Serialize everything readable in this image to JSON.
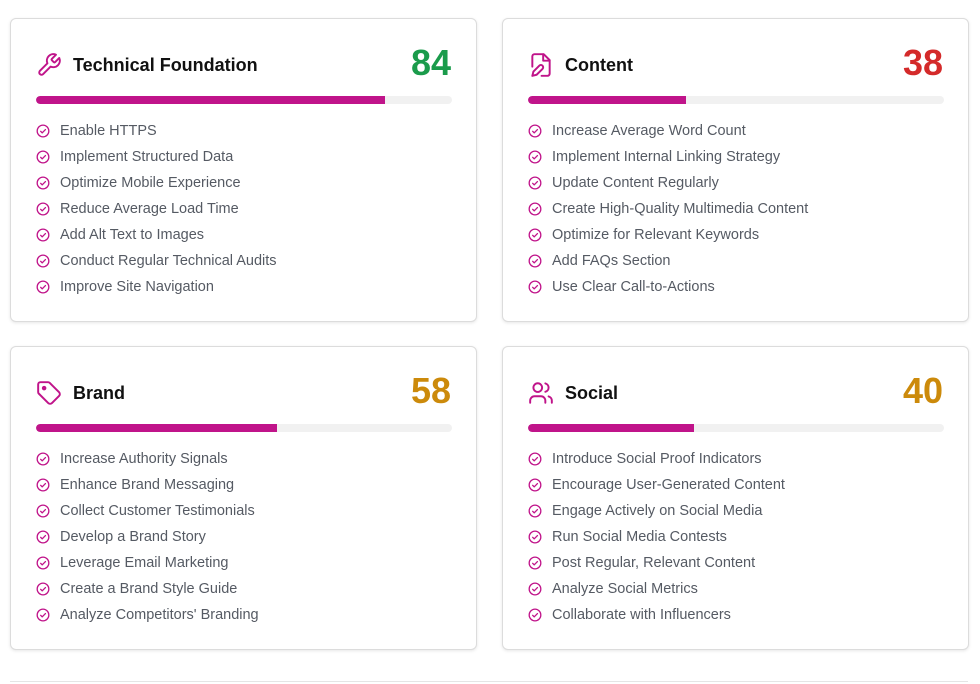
{
  "accent_color": "#c0148a",
  "cards": [
    {
      "title": "Technical Foundation",
      "score": "84",
      "progress_percent": 84,
      "score_color": "#1a9b4b",
      "icon": "wrench-icon",
      "items": [
        "Enable HTTPS",
        "Implement Structured Data",
        "Optimize Mobile Experience",
        "Reduce Average Load Time",
        "Add Alt Text to Images",
        "Conduct Regular Technical Audits",
        "Improve Site Navigation"
      ]
    },
    {
      "title": "Content",
      "score": "38",
      "progress_percent": 38,
      "score_color": "#d42a2a",
      "icon": "file-edit-icon",
      "items": [
        "Increase Average Word Count",
        "Implement Internal Linking Strategy",
        "Update Content Regularly",
        "Create High-Quality Multimedia Content",
        "Optimize for Relevant Keywords",
        "Add FAQs Section",
        "Use Clear Call-to-Actions"
      ]
    },
    {
      "title": "Brand",
      "score": "58",
      "progress_percent": 58,
      "score_color": "#cc8a0b",
      "icon": "tag-icon",
      "items": [
        "Increase Authority Signals",
        "Enhance Brand Messaging",
        "Collect Customer Testimonials",
        "Develop a Brand Story",
        "Leverage Email Marketing",
        "Create a Brand Style Guide",
        "Analyze Competitors' Branding"
      ]
    },
    {
      "title": "Social",
      "score": "40",
      "progress_percent": 40,
      "score_color": "#cc8a0b",
      "icon": "users-icon",
      "items": [
        "Introduce Social Proof Indicators",
        "Encourage User-Generated Content",
        "Engage Actively on Social Media",
        "Run Social Media Contests",
        "Post Regular, Relevant Content",
        "Analyze Social Metrics",
        "Collaborate with Influencers"
      ]
    }
  ]
}
